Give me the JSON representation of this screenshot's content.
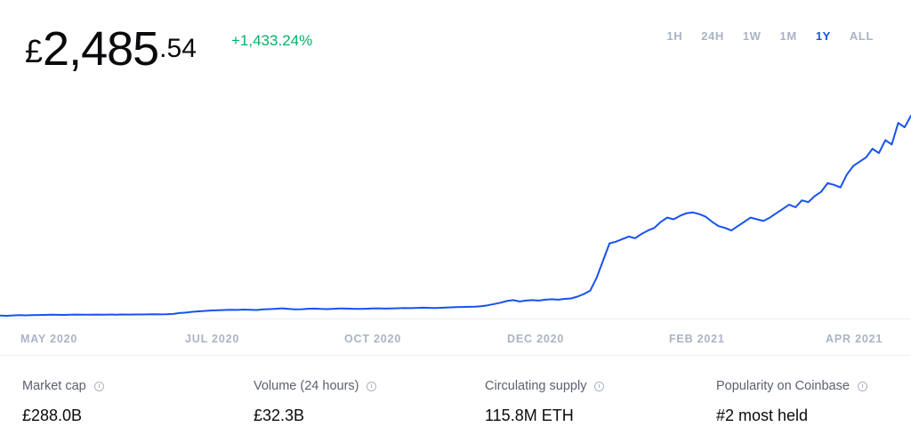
{
  "price": {
    "currency": "£",
    "whole": "2,485",
    "decimal": ".54",
    "change": "+1,433.24%"
  },
  "ranges": [
    {
      "label": "1H",
      "active": false
    },
    {
      "label": "24H",
      "active": false
    },
    {
      "label": "1W",
      "active": false
    },
    {
      "label": "1M",
      "active": false
    },
    {
      "label": "1Y",
      "active": true
    },
    {
      "label": "ALL",
      "active": false
    }
  ],
  "colors": {
    "line": "#1652f0",
    "positive": "#05b169",
    "muted": "#a9b4c5"
  },
  "chart_data": {
    "type": "line",
    "x_ticks": [
      "MAY 2020",
      "JUL 2020",
      "OCT 2020",
      "DEC 2020",
      "FEB 2021",
      "APR 2021"
    ],
    "series": [
      {
        "values": [
          160,
          158,
          162,
          165,
          163,
          166,
          167,
          168,
          170,
          169,
          168,
          170,
          172,
          171,
          170,
          172,
          171,
          172,
          171,
          173,
          172,
          174,
          173,
          175,
          176,
          175,
          176,
          180,
          190,
          195,
          205,
          210,
          215,
          220,
          222,
          225,
          228,
          226,
          230,
          228,
          225,
          232,
          236,
          240,
          245,
          238,
          232,
          235,
          240,
          242,
          238,
          236,
          240,
          244,
          242,
          240,
          238,
          240,
          243,
          245,
          242,
          244,
          246,
          248,
          247,
          250,
          252,
          250,
          248,
          252,
          255,
          258,
          260,
          262,
          265,
          270,
          280,
          295,
          310,
          330,
          340,
          325,
          335,
          340,
          335,
          345,
          350,
          345,
          355,
          360,
          380,
          410,
          450,
          600,
          800,
          1000,
          1020,
          1050,
          1080,
          1060,
          1110,
          1150,
          1180,
          1250,
          1300,
          1280,
          1320,
          1350,
          1360,
          1340,
          1310,
          1250,
          1200,
          1180,
          1150,
          1200,
          1250,
          1300,
          1280,
          1260,
          1300,
          1350,
          1400,
          1450,
          1420,
          1500,
          1480,
          1550,
          1600,
          1700,
          1680,
          1650,
          1800,
          1900,
          1950,
          2000,
          2100,
          2050,
          2200,
          2150,
          2400,
          2350,
          2485
        ]
      }
    ]
  },
  "stats": [
    {
      "label": "Market cap",
      "value": "£288.0B"
    },
    {
      "label": "Volume (24 hours)",
      "value": "£32.3B"
    },
    {
      "label": "Circulating supply",
      "value": "115.8M ETH"
    },
    {
      "label": "Popularity on Coinbase",
      "value": "#2 most held"
    }
  ]
}
